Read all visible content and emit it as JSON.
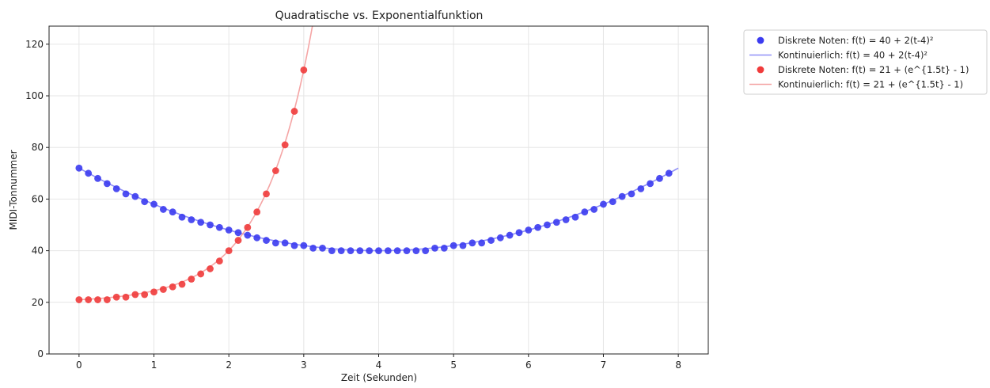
{
  "chart_data": {
    "type": "scatter",
    "title": "Quadratische vs. Exponentialfunktion",
    "xlabel": "Zeit (Sekunden)",
    "ylabel": "MIDI-Tonnummer",
    "xlim": [
      -0.4,
      8.4
    ],
    "ylim": [
      0,
      127
    ],
    "xticks": [
      0,
      1,
      2,
      3,
      4,
      5,
      6,
      7,
      8
    ],
    "yticks": [
      0,
      20,
      40,
      60,
      80,
      100,
      120
    ],
    "grid": true,
    "legend_position": "outside-top-right",
    "series": [
      {
        "name": "Diskrete Noten: f(t) = 40 + 2(t-4)²",
        "kind": "points",
        "color": "#3b3bf0",
        "x": [
          0,
          0.125,
          0.25,
          0.375,
          0.5,
          0.625,
          0.75,
          0.875,
          1,
          1.125,
          1.25,
          1.375,
          1.5,
          1.625,
          1.75,
          1.875,
          2,
          2.125,
          2.25,
          2.375,
          2.5,
          2.625,
          2.75,
          2.875,
          3,
          3.125,
          3.25,
          3.375,
          3.5,
          3.625,
          3.75,
          3.875,
          4,
          4.125,
          4.25,
          4.375,
          4.5,
          4.625,
          4.75,
          4.875,
          5,
          5.125,
          5.25,
          5.375,
          5.5,
          5.625,
          5.75,
          5.875,
          6,
          6.125,
          6.25,
          6.375,
          6.5,
          6.625,
          6.75,
          6.875,
          7,
          7.125,
          7.25,
          7.375,
          7.5,
          7.625,
          7.75,
          7.875
        ],
        "y": [
          72,
          70,
          68,
          66,
          64,
          62,
          61,
          59,
          58,
          56,
          55,
          53,
          52,
          51,
          50,
          49,
          48,
          47,
          46,
          45,
          44,
          43,
          43,
          42,
          42,
          41,
          41,
          40,
          40,
          40,
          40,
          40,
          40,
          40,
          40,
          40,
          40,
          40,
          41,
          41,
          42,
          42,
          43,
          43,
          44,
          45,
          46,
          47,
          48,
          49,
          50,
          51,
          52,
          53,
          55,
          56,
          58,
          59,
          61,
          62,
          64,
          66,
          68,
          70
        ]
      },
      {
        "name": "Kontinuierlich: f(t) = 40 + 2(t-4)²",
        "kind": "line",
        "color": "#8f8ff7",
        "formula": "quadratic"
      },
      {
        "name": "Diskrete Noten: f(t) = 21 + (e^{1.5t} - 1)",
        "kind": "points",
        "color": "#f03b3b",
        "x": [
          0,
          0.125,
          0.25,
          0.375,
          0.5,
          0.625,
          0.75,
          0.875,
          1,
          1.125,
          1.25,
          1.375,
          1.5,
          1.625,
          1.75,
          1.875,
          2,
          2.125,
          2.25,
          2.375,
          2.5,
          2.625,
          2.75,
          2.875,
          3
        ],
        "y": [
          21,
          21,
          21,
          21,
          22,
          22,
          23,
          23,
          24,
          25,
          26,
          27,
          29,
          31,
          33,
          36,
          40,
          44,
          49,
          55,
          62,
          71,
          81,
          94,
          110
        ]
      },
      {
        "name": "Kontinuierlich: f(t) = 21 + (e^{1.5t} - 1)",
        "kind": "line",
        "color": "#f5a5a5",
        "formula": "exponential"
      }
    ]
  }
}
